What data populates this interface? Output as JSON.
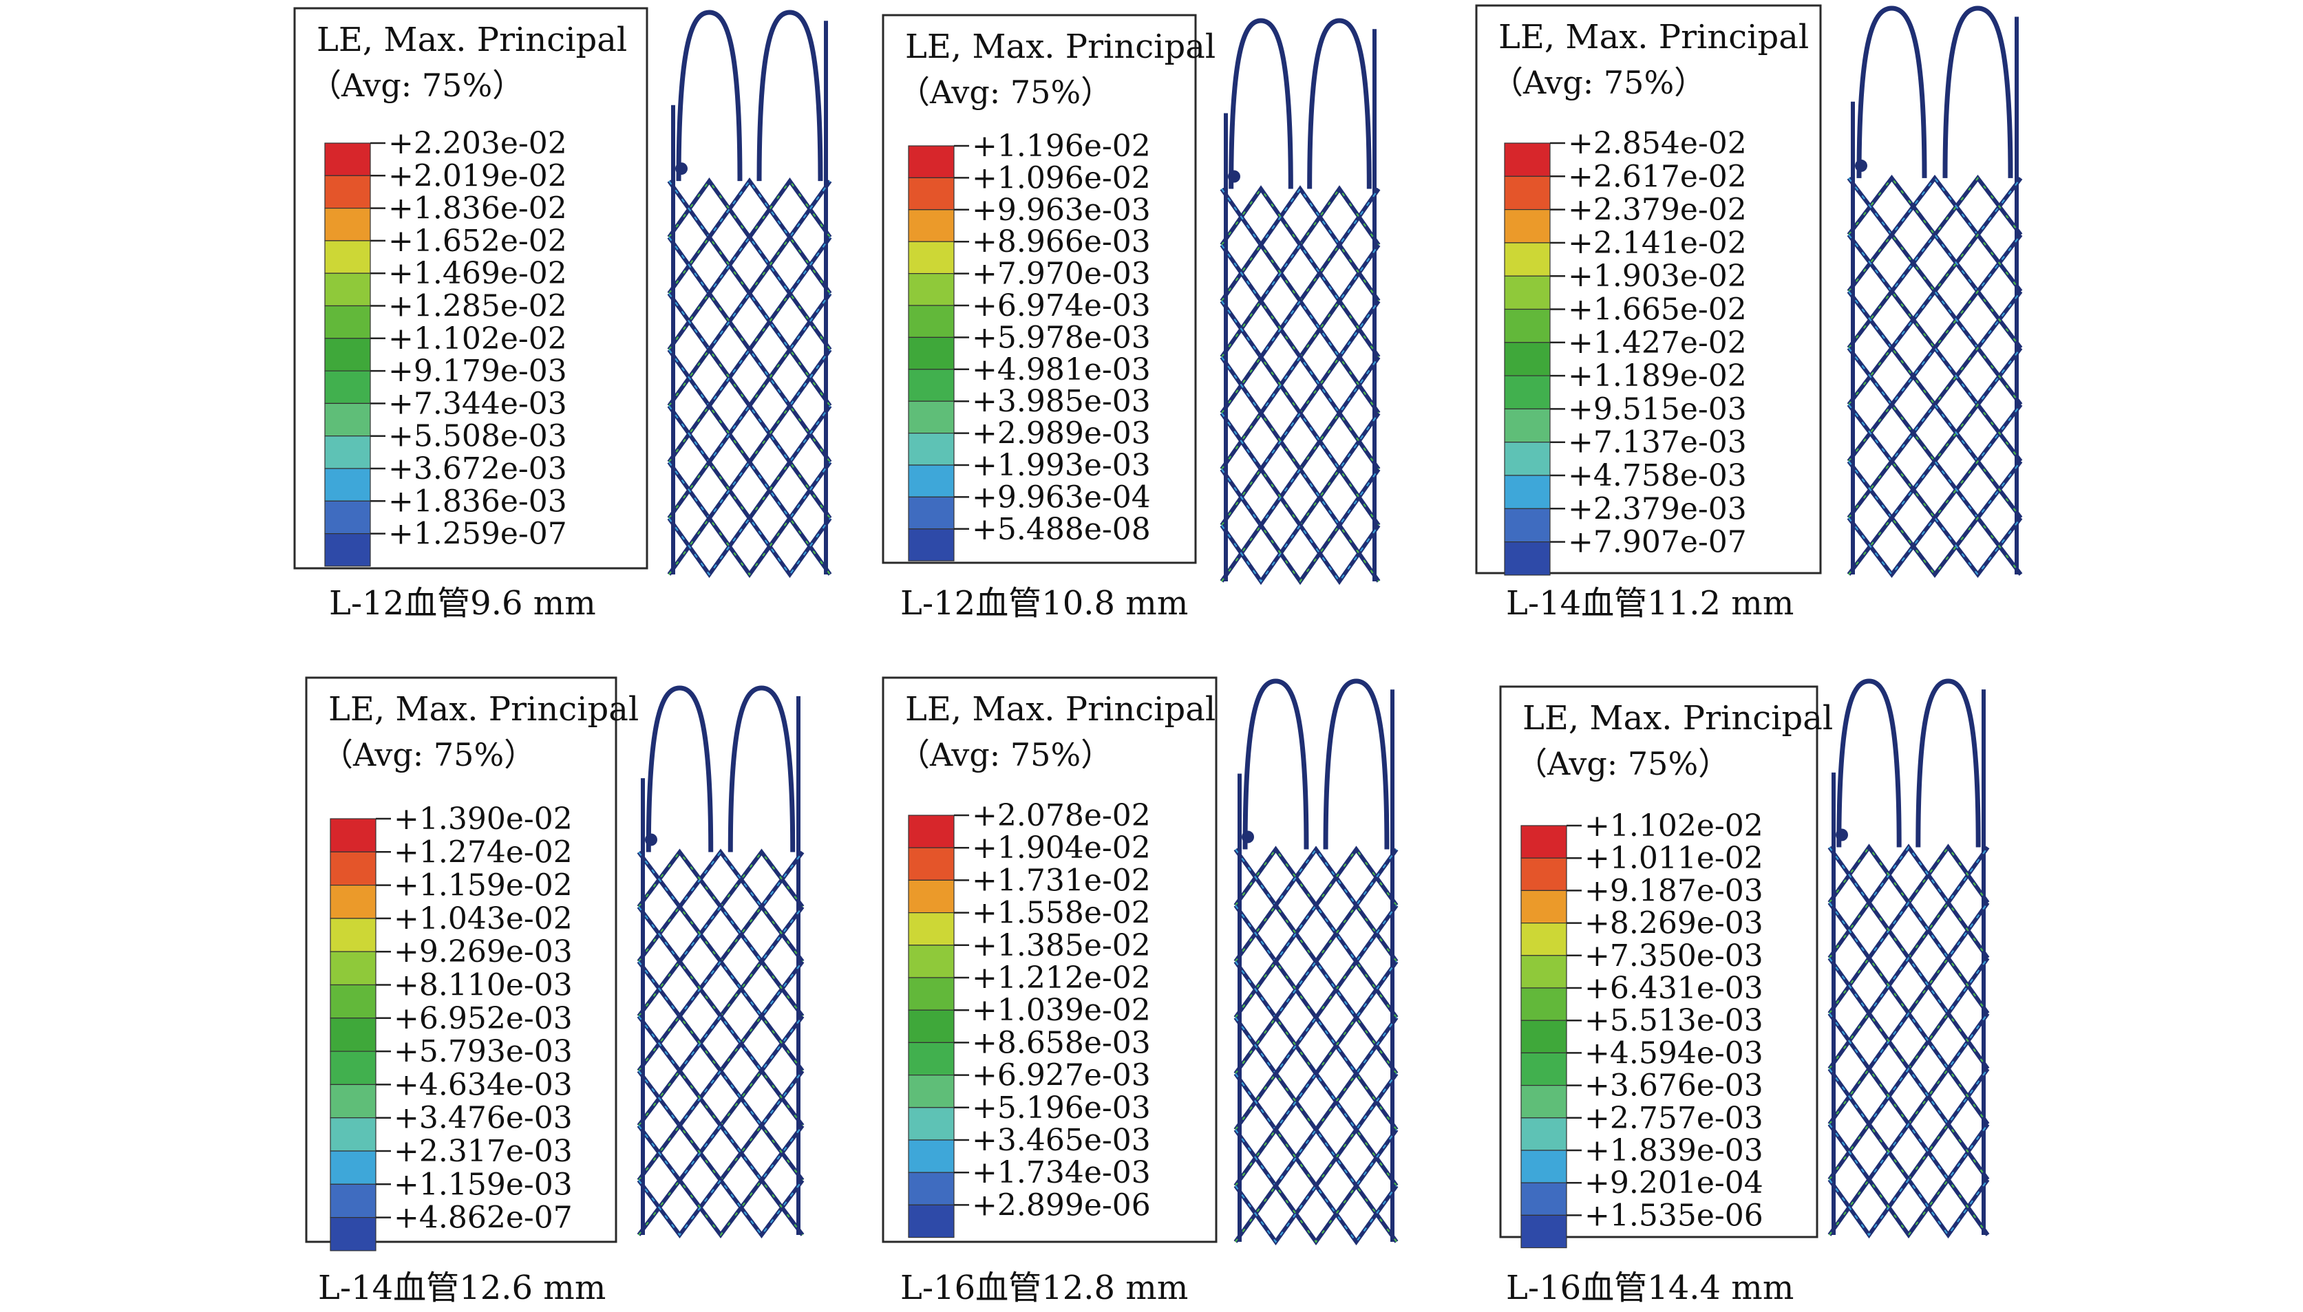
{
  "panels": [
    {
      "title": "LE, Max. Principal",
      "avg": "（Avg: 75%）",
      "caption": "L-12血管9.6 mm",
      "values": [
        "+2.203e-02",
        "+2.019e-02",
        "+1.836e-02",
        "+1.652e-02",
        "+1.469e-02",
        "+1.285e-02",
        "+1.102e-02",
        "+9.179e-03",
        "+7.344e-03",
        "+5.508e-03",
        "+3.672e-03",
        "+1.836e-03",
        "+1.259e-07"
      ]
    },
    {
      "title": "LE, Max. Principal",
      "avg": "（Avg: 75%）",
      "caption": "L-12血管10.8 mm",
      "values": [
        "+1.196e-02",
        "+1.096e-02",
        "+9.963e-03",
        "+8.966e-03",
        "+7.970e-03",
        "+6.974e-03",
        "+5.978e-03",
        "+4.981e-03",
        "+3.985e-03",
        "+2.989e-03",
        "+1.993e-03",
        "+9.963e-04",
        "+5.488e-08"
      ]
    },
    {
      "title": "LE, Max. Principal",
      "avg": "（Avg: 75%）",
      "caption": "L-14血管11.2 mm",
      "values": [
        "+2.854e-02",
        "+2.617e-02",
        "+2.379e-02",
        "+2.141e-02",
        "+1.903e-02",
        "+1.665e-02",
        "+1.427e-02",
        "+1.189e-02",
        "+9.515e-03",
        "+7.137e-03",
        "+4.758e-03",
        "+2.379e-03",
        "+7.907e-07"
      ]
    },
    {
      "title": "LE, Max. Principal",
      "avg": "（Avg: 75%）",
      "caption": "L-14血管12.6 mm",
      "values": [
        "+1.390e-02",
        "+1.274e-02",
        "+1.159e-02",
        "+1.043e-02",
        "+9.269e-03",
        "+8.110e-03",
        "+6.952e-03",
        "+5.793e-03",
        "+4.634e-03",
        "+3.476e-03",
        "+2.317e-03",
        "+1.159e-03",
        "+4.862e-07"
      ]
    },
    {
      "title": "LE, Max. Principal",
      "avg": "（Avg: 75%）",
      "caption": "L-16血管12.8 mm",
      "values": [
        "+2.078e-02",
        "+1.904e-02",
        "+1.731e-02",
        "+1.558e-02",
        "+1.385e-02",
        "+1.212e-02",
        "+1.039e-02",
        "+8.658e-03",
        "+6.927e-03",
        "+5.196e-03",
        "+3.465e-03",
        "+1.734e-03",
        "+2.899e-06"
      ]
    },
    {
      "title": "LE, Max. Principal",
      "avg": "（Avg: 75%）",
      "caption": "L-16血管14.4 mm",
      "values": [
        "+1.102e-02",
        "+1.011e-02",
        "+9.187e-03",
        "+8.269e-03",
        "+7.350e-03",
        "+6.431e-03",
        "+5.513e-03",
        "+4.594e-03",
        "+3.676e-03",
        "+2.757e-03",
        "+1.839e-03",
        "+9.201e-04",
        "+1.535e-06"
      ]
    }
  ],
  "colormap": [
    "#d7262b",
    "#e4552a",
    "#eb9a2a",
    "#cdd736",
    "#8fc93a",
    "#62b83a",
    "#3fa83a",
    "#41b04e",
    "#5fbe78",
    "#5ec2b5",
    "#3ea7d9",
    "#3f6cc0",
    "#2e4aa8"
  ],
  "stent_colors": {
    "strut": "#1f2f73",
    "highlight": "#3aa0d8",
    "accent": "#4cb84c"
  }
}
